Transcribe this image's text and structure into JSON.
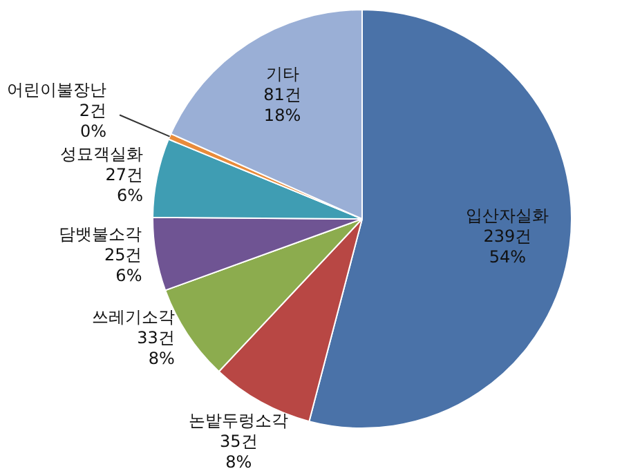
{
  "chart_data": {
    "type": "pie",
    "categories": [
      "입산자실화",
      "논밭두렁소각",
      "쓰레기소각",
      "담뱃불소각",
      "성묘객실화",
      "어린이불장난",
      "기타"
    ],
    "values": [
      239,
      35,
      33,
      25,
      27,
      2,
      81
    ],
    "colors": [
      "#4a72a8",
      "#b84744",
      "#8cac4e",
      "#6f5493",
      "#3f9db3",
      "#e98b3a",
      "#9aafd6"
    ],
    "value_labels": [
      "239건\n54%",
      "35건\n8%",
      "33건\n8%",
      "25건\n6%",
      "27건\n6%",
      "2건\n0%",
      "81건\n18%"
    ],
    "legend": false
  }
}
